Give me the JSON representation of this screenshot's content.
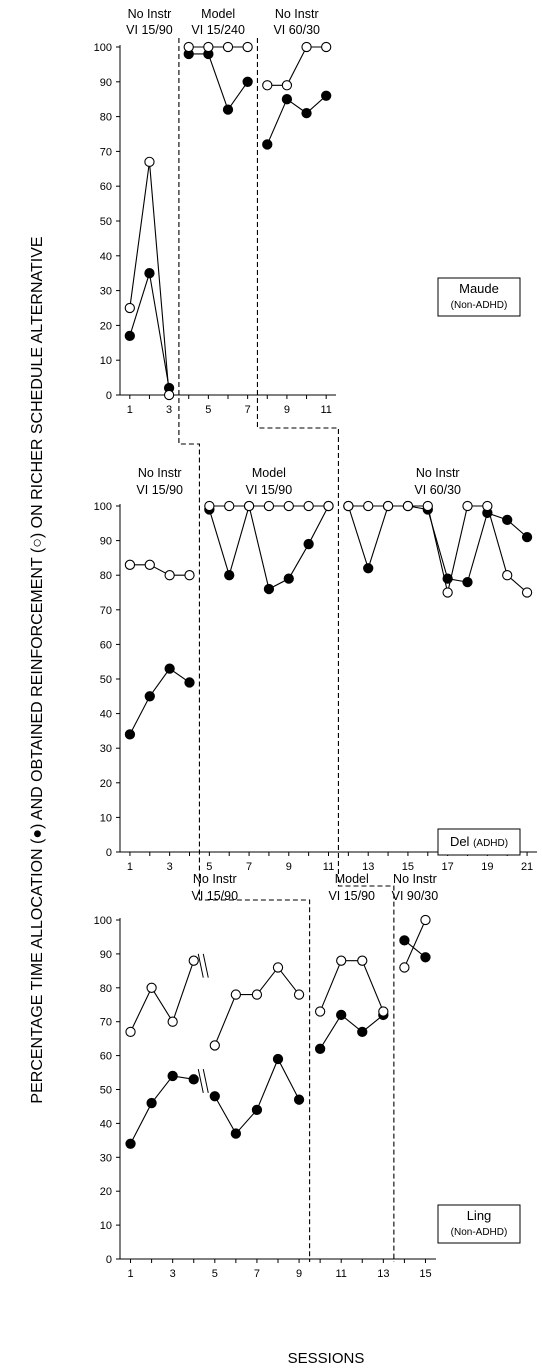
{
  "figure": {
    "ylabel": "PERCENTAGE TIME ALLOCATION (●) AND OBTAINED REINFORCEMENT (○) ON RICHER SCHEDULE ALTERNATIVE",
    "xlabel": "SESSIONS"
  },
  "chart_data": [
    {
      "type": "line",
      "participant": "Maude",
      "participant_note": "(Non-ADHD)",
      "ylim": [
        0,
        100
      ],
      "yticks": [
        0,
        10,
        20,
        30,
        40,
        50,
        60,
        70,
        80,
        90,
        100
      ],
      "xlim": [
        0.5,
        11.5
      ],
      "xticks": [
        1,
        3,
        5,
        7,
        9,
        11
      ],
      "phases": [
        {
          "line1": "No Instr",
          "line2": "VI 15/90",
          "sessions": [
            1,
            3
          ]
        },
        {
          "line1": "Model",
          "line2": "VI 15/240",
          "sessions": [
            4,
            7
          ]
        },
        {
          "line1": "No Instr",
          "line2": "VI 60/30",
          "sessions": [
            8,
            11
          ]
        }
      ],
      "series": [
        {
          "marker": "filled",
          "x": [
            1,
            2,
            3,
            4,
            5,
            6,
            7,
            8,
            9,
            10,
            11
          ],
          "values": [
            17,
            35,
            2,
            98,
            98,
            82,
            90,
            72,
            85,
            81,
            86
          ]
        },
        {
          "marker": "open",
          "x": [
            1,
            2,
            3,
            4,
            5,
            6,
            7,
            8,
            9,
            10,
            11
          ],
          "values": [
            25,
            67,
            0,
            100,
            100,
            100,
            100,
            89,
            89,
            100,
            100
          ]
        }
      ]
    },
    {
      "type": "line",
      "participant": "Del",
      "participant_note": "(ADHD)",
      "ylim": [
        0,
        100
      ],
      "yticks": [
        0,
        10,
        20,
        30,
        40,
        50,
        60,
        70,
        80,
        90,
        100
      ],
      "xlim": [
        0.5,
        21.5
      ],
      "xticks": [
        1,
        3,
        5,
        7,
        9,
        11,
        13,
        15,
        17,
        19,
        21
      ],
      "phases": [
        {
          "line1": "No Instr",
          "line2": "VI 15/90",
          "sessions": [
            1,
            4
          ]
        },
        {
          "line1": "Model",
          "line2": "VI 15/90",
          "sessions": [
            5,
            11
          ]
        },
        {
          "line1": "No Instr",
          "line2": "VI 60/30",
          "sessions": [
            12,
            21
          ]
        }
      ],
      "series": [
        {
          "marker": "filled",
          "x": [
            1,
            2,
            3,
            4,
            5,
            6,
            7,
            8,
            9,
            10,
            11,
            12,
            13,
            14,
            15,
            16,
            17,
            18,
            19,
            20,
            21
          ],
          "values": [
            34,
            45,
            53,
            49,
            99,
            80,
            100,
            76,
            79,
            89,
            100,
            100,
            82,
            100,
            100,
            99,
            79,
            78,
            98,
            96,
            91
          ]
        },
        {
          "marker": "open",
          "x": [
            1,
            2,
            3,
            4,
            5,
            6,
            7,
            8,
            9,
            10,
            11,
            12,
            13,
            14,
            15,
            16,
            17,
            18,
            19,
            20,
            21
          ],
          "values": [
            83,
            83,
            80,
            80,
            100,
            100,
            100,
            100,
            100,
            100,
            100,
            100,
            100,
            100,
            100,
            100,
            75,
            100,
            100,
            80,
            75
          ]
        }
      ]
    },
    {
      "type": "line",
      "participant": "Ling",
      "participant_note": "(Non-ADHD)",
      "ylim": [
        0,
        100
      ],
      "yticks": [
        0,
        10,
        20,
        30,
        40,
        50,
        60,
        70,
        80,
        90,
        100
      ],
      "xlim": [
        0.5,
        15.5
      ],
      "xticks": [
        1,
        3,
        5,
        7,
        9,
        11,
        13,
        15
      ],
      "phases": [
        {
          "line1": "No Instr",
          "line2": "VI 15/90",
          "sessions": [
            1,
            9
          ]
        },
        {
          "line1": "Model",
          "line2": "VI 15/90",
          "sessions": [
            10,
            13
          ]
        },
        {
          "line1": "No Instr",
          "line2": "VI 90/30",
          "sessions": [
            14,
            15
          ]
        }
      ],
      "break_between": [
        4,
        5
      ],
      "series": [
        {
          "marker": "filled",
          "x": [
            1,
            2,
            3,
            4,
            5,
            6,
            7,
            8,
            9,
            10,
            11,
            12,
            13,
            14,
            15
          ],
          "values": [
            34,
            46,
            54,
            53,
            48,
            37,
            44,
            59,
            47,
            62,
            72,
            67,
            72,
            94,
            89
          ]
        },
        {
          "marker": "open",
          "x": [
            1,
            2,
            3,
            4,
            5,
            6,
            7,
            8,
            9,
            10,
            11,
            12,
            13,
            14,
            15
          ],
          "values": [
            67,
            80,
            70,
            88,
            63,
            78,
            78,
            86,
            78,
            73,
            88,
            88,
            73,
            86,
            100
          ]
        }
      ]
    }
  ]
}
